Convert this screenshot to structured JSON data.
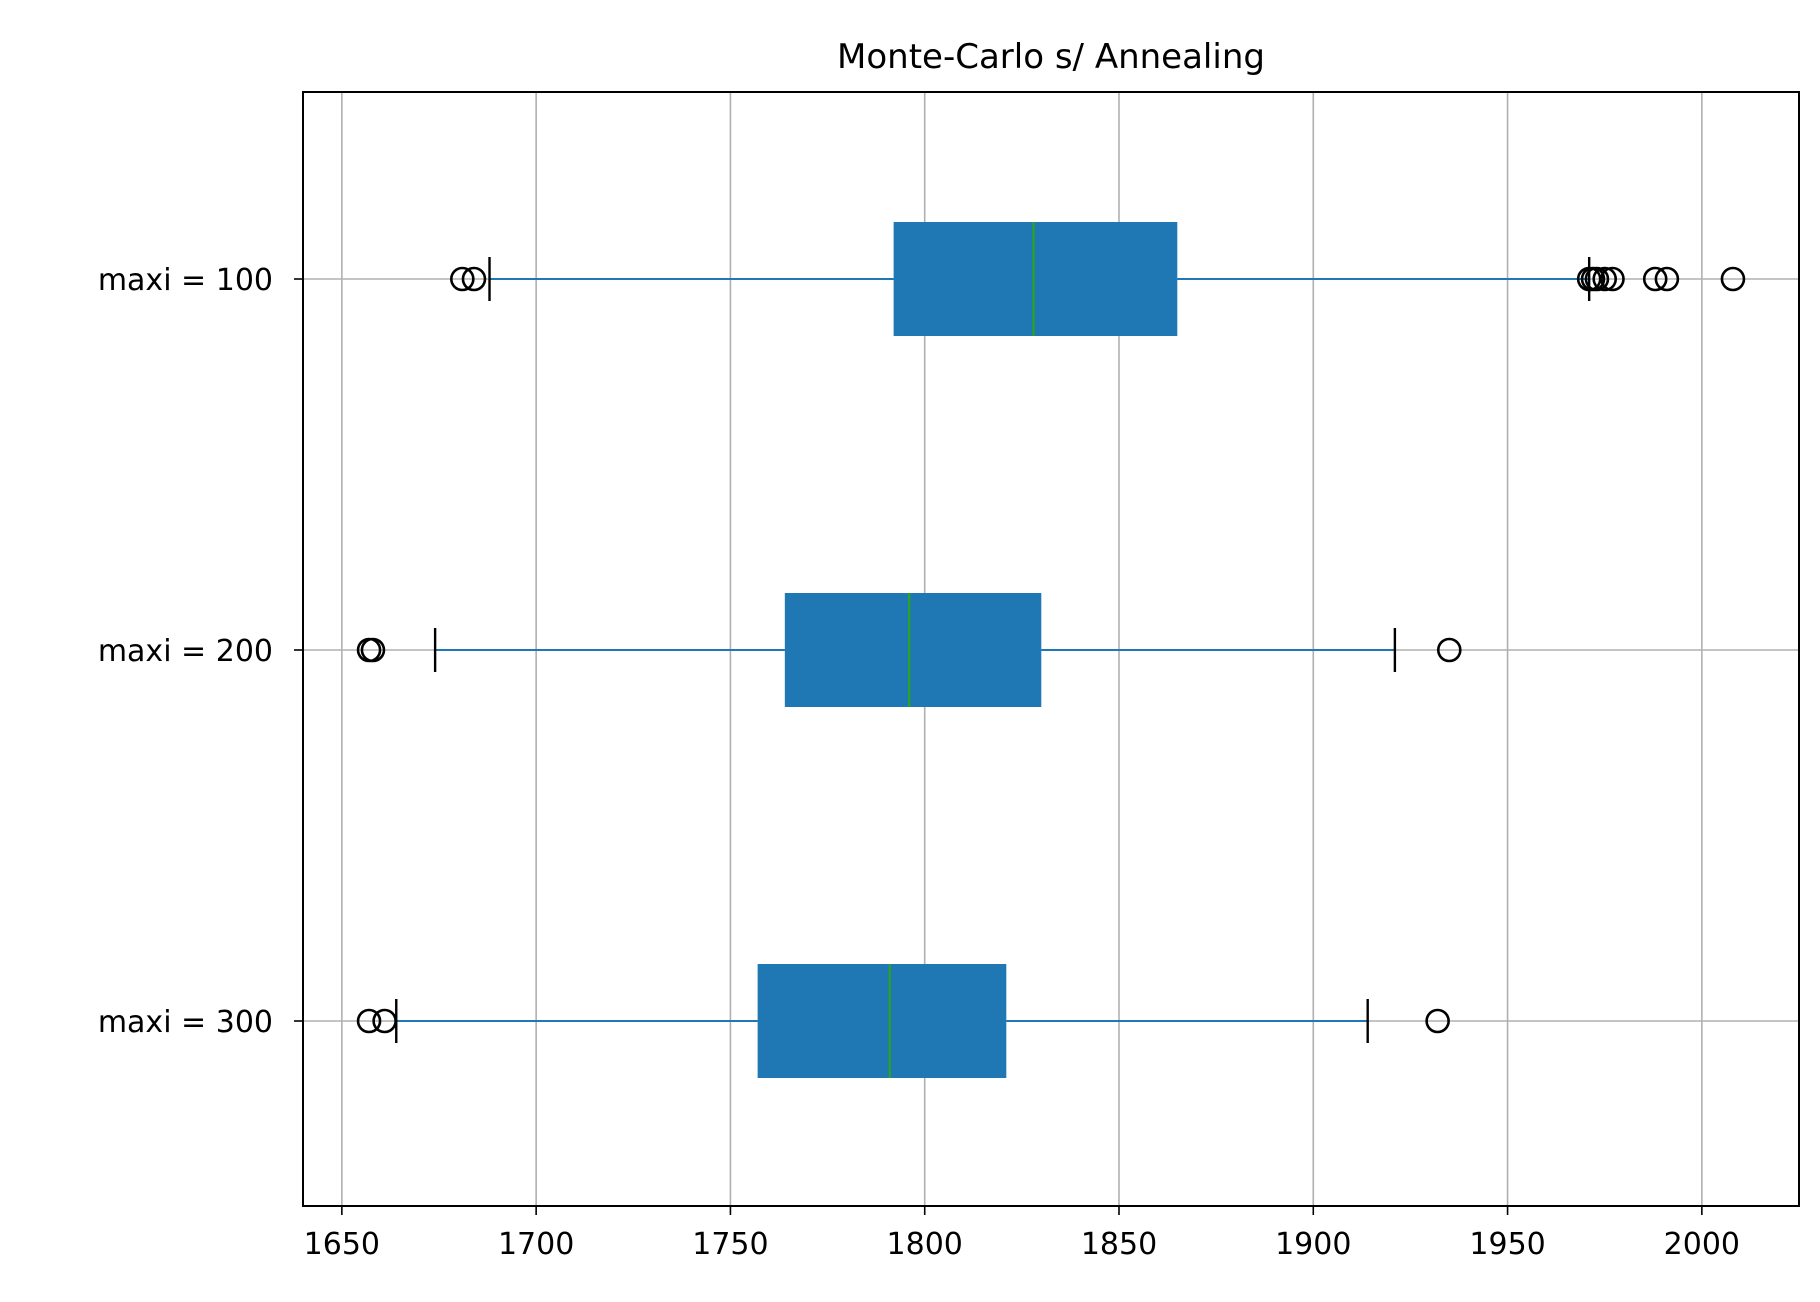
{
  "chart_data": {
    "type": "boxplot",
    "orientation": "horizontal",
    "title": "Monte-Carlo s/ Annealing",
    "xlabel": "",
    "ylabel": "",
    "xlim": [
      1640,
      2025
    ],
    "xticks": [
      1650,
      1700,
      1750,
      1800,
      1850,
      1900,
      1950,
      2000
    ],
    "grid": true,
    "colors": {
      "box": "#1f77b4",
      "whisker": "#1f77b4",
      "median": "#2ca02c",
      "cap": "#000000",
      "grid": "#b0b0b0",
      "outlier": "#000000"
    },
    "series": [
      {
        "name": "maxi = 100",
        "whisker_low": 1688,
        "q1": 1792,
        "median": 1828,
        "q3": 1865,
        "whisker_high": 1971,
        "outliers": [
          1681,
          1684,
          1971,
          1972,
          1973,
          1975,
          1977,
          1988,
          1991,
          2008
        ]
      },
      {
        "name": "maxi = 200",
        "whisker_low": 1674,
        "q1": 1764,
        "median": 1796,
        "q3": 1830,
        "whisker_high": 1921,
        "outliers": [
          1657,
          1658,
          1935
        ]
      },
      {
        "name": "maxi = 300",
        "whisker_low": 1664,
        "q1": 1757,
        "median": 1791,
        "q3": 1821,
        "whisker_high": 1914,
        "outliers": [
          1657,
          1661,
          1932
        ]
      }
    ]
  }
}
